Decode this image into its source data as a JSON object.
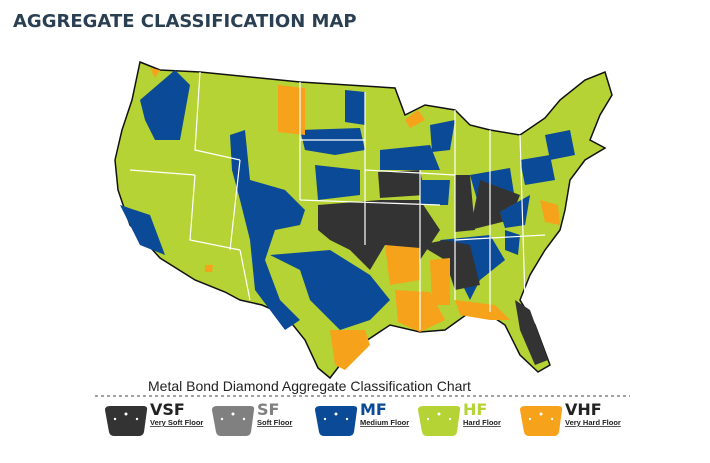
{
  "header": {
    "title": "AGGREGATE CLASSIFICATION MAP"
  },
  "chart": {
    "title": "Metal Bond Diamond Aggregate Classification Chart"
  },
  "legend": [
    {
      "code": "VSF",
      "label": "Very Soft Floor",
      "color": "#333333"
    },
    {
      "code": "SF",
      "label": "Soft Floor",
      "color": "#808080"
    },
    {
      "code": "MF",
      "label": "Medium Floor",
      "color": "#0a4a96"
    },
    {
      "code": "HF",
      "label": "Hard Floor",
      "color": "#b5d334"
    },
    {
      "code": "VHF",
      "label": "Very Hard Floor",
      "color": "#f7a21b"
    }
  ]
}
